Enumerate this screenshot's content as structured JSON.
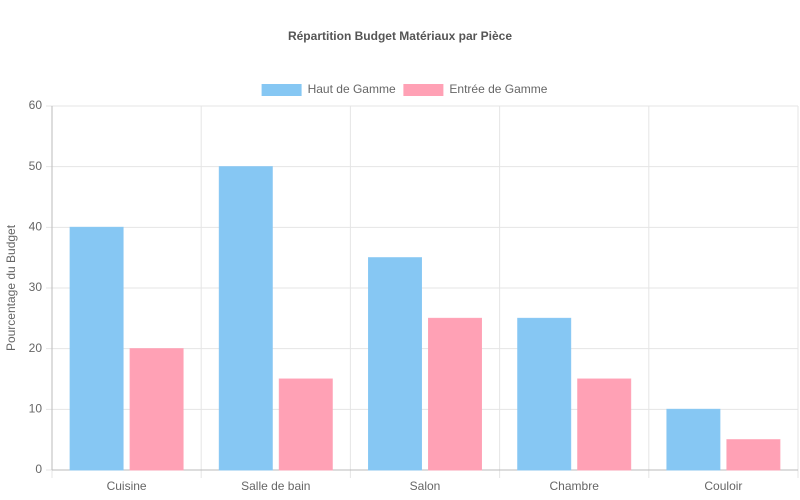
{
  "chart_data": {
    "type": "bar",
    "title": "Répartition Budget Matériaux par Pièce",
    "y_label": "Pourcentage du Budget",
    "categories": [
      "Cuisine",
      "Salle de bain",
      "Salon",
      "Chambre",
      "Couloir"
    ],
    "series": [
      {
        "name": "Haut de Gamme",
        "color": "#86c7f3",
        "values": [
          40,
          50,
          35,
          25,
          10
        ]
      },
      {
        "name": "Entrée de Gamme",
        "color": "#ffa1b5",
        "values": [
          20,
          15,
          25,
          15,
          5
        ]
      }
    ],
    "ylim": [
      0,
      60
    ],
    "yticks": [
      0,
      10,
      20,
      30,
      40,
      50,
      60
    ],
    "grid": true,
    "legend": "top"
  }
}
